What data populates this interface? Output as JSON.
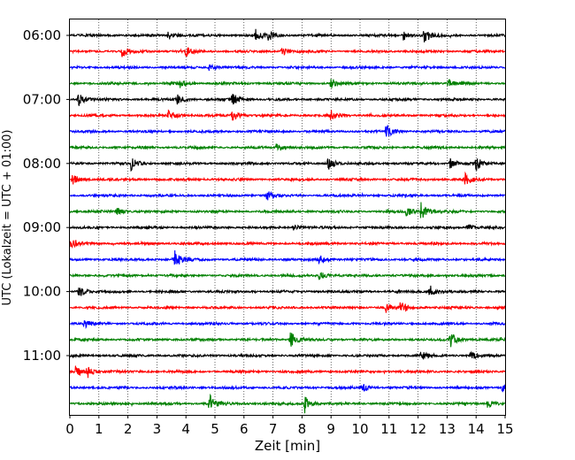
{
  "chart_data": {
    "type": "line",
    "xlabel": "Zeit  [min]",
    "ylabel": "UTC (Lokalzeit = UTC + 01:00)",
    "xlim": [
      0,
      15
    ],
    "x_ticks": [
      "0",
      "1",
      "2",
      "3",
      "4",
      "5",
      "6",
      "7",
      "8",
      "9",
      "10",
      "11",
      "12",
      "13",
      "14",
      "15"
    ],
    "y_ticks": [
      "06:00",
      "07:00",
      "08:00",
      "09:00",
      "10:00",
      "11:00"
    ],
    "row_interval_minutes": 15,
    "first_row": "06:00",
    "row_count": 24,
    "color_cycle": [
      "#000000",
      "#ff0000",
      "#0000ff",
      "#008000"
    ],
    "grid": "vertical dotted at each minute",
    "events": [
      {
        "row": 0,
        "t": 3.4,
        "amp": 0.45
      },
      {
        "row": 0,
        "t": 6.4,
        "amp": 0.55
      },
      {
        "row": 0,
        "t": 6.85,
        "amp": 0.5
      },
      {
        "row": 0,
        "t": 11.5,
        "amp": 0.45
      },
      {
        "row": 0,
        "t": 12.2,
        "amp": 0.8
      },
      {
        "row": 1,
        "t": 1.8,
        "amp": 0.5
      },
      {
        "row": 1,
        "t": 4.0,
        "amp": 0.45
      },
      {
        "row": 1,
        "t": 7.3,
        "amp": 0.4
      },
      {
        "row": 2,
        "t": 4.8,
        "amp": 0.35
      },
      {
        "row": 3,
        "t": 3.8,
        "amp": 0.35
      },
      {
        "row": 3,
        "t": 9.0,
        "amp": 0.5
      },
      {
        "row": 3,
        "t": 13.0,
        "amp": 0.45
      },
      {
        "row": 4,
        "t": 0.3,
        "amp": 0.6
      },
      {
        "row": 4,
        "t": 3.7,
        "amp": 0.45
      },
      {
        "row": 4,
        "t": 5.6,
        "amp": 0.6
      },
      {
        "row": 5,
        "t": 3.4,
        "amp": 0.6
      },
      {
        "row": 5,
        "t": 5.6,
        "amp": 0.45
      },
      {
        "row": 5,
        "t": 9.0,
        "amp": 0.45
      },
      {
        "row": 6,
        "t": 10.9,
        "amp": 0.65
      },
      {
        "row": 7,
        "t": 7.1,
        "amp": 0.4
      },
      {
        "row": 8,
        "t": 2.1,
        "amp": 0.6
      },
      {
        "row": 8,
        "t": 8.9,
        "amp": 0.65
      },
      {
        "row": 8,
        "t": 13.1,
        "amp": 0.5
      },
      {
        "row": 8,
        "t": 14.0,
        "amp": 0.7
      },
      {
        "row": 9,
        "t": 0.1,
        "amp": 0.5
      },
      {
        "row": 9,
        "t": 13.6,
        "amp": 0.6
      },
      {
        "row": 10,
        "t": 6.8,
        "amp": 0.45
      },
      {
        "row": 11,
        "t": 12.1,
        "amp": 0.85
      },
      {
        "row": 11,
        "t": 11.6,
        "amp": 0.5
      },
      {
        "row": 11,
        "t": 1.6,
        "amp": 0.4
      },
      {
        "row": 12,
        "t": 7.7,
        "amp": 0.35
      },
      {
        "row": 12,
        "t": 13.7,
        "amp": 0.5
      },
      {
        "row": 13,
        "t": 0.05,
        "amp": 0.45
      },
      {
        "row": 14,
        "t": 3.6,
        "amp": 0.9
      },
      {
        "row": 14,
        "t": 8.6,
        "amp": 0.6
      },
      {
        "row": 15,
        "t": 8.6,
        "amp": 0.4
      },
      {
        "row": 16,
        "t": 0.3,
        "amp": 0.6
      },
      {
        "row": 16,
        "t": 12.4,
        "amp": 0.6
      },
      {
        "row": 17,
        "t": 11.4,
        "amp": 0.6
      },
      {
        "row": 17,
        "t": 10.9,
        "amp": 0.4
      },
      {
        "row": 18,
        "t": 0.5,
        "amp": 0.4
      },
      {
        "row": 19,
        "t": 7.6,
        "amp": 0.75
      },
      {
        "row": 19,
        "t": 13.1,
        "amp": 0.75
      },
      {
        "row": 20,
        "t": 12.1,
        "amp": 0.4
      },
      {
        "row": 20,
        "t": 13.8,
        "amp": 0.4
      },
      {
        "row": 21,
        "t": 0.2,
        "amp": 0.5
      },
      {
        "row": 21,
        "t": 0.6,
        "amp": 0.55
      },
      {
        "row": 22,
        "t": 10.1,
        "amp": 0.4
      },
      {
        "row": 22,
        "t": 14.9,
        "amp": 0.45
      },
      {
        "row": 23,
        "t": 4.8,
        "amp": 0.9
      },
      {
        "row": 23,
        "t": 8.1,
        "amp": 0.85
      },
      {
        "row": 23,
        "t": 14.4,
        "amp": 0.35
      }
    ]
  }
}
